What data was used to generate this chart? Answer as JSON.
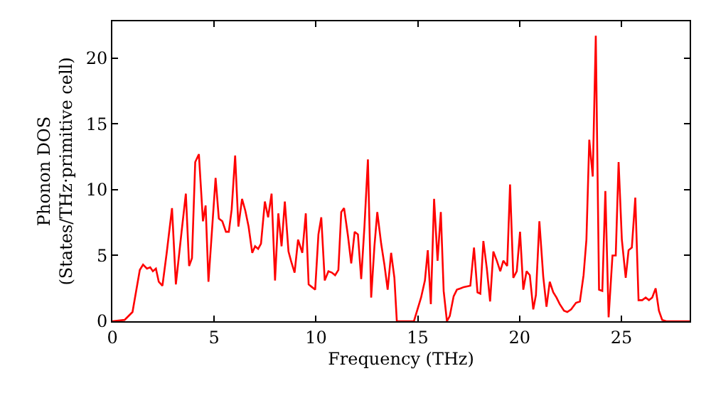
{
  "chart_data": {
    "type": "line",
    "xlabel": "Frequency (THz)",
    "ylabel": "Phonon DOS\n(States/THz·primitive cell)",
    "xlim": [
      0,
      28.35
    ],
    "ylim": [
      0,
      22.8
    ],
    "xticks": [
      0,
      5,
      10,
      15,
      20,
      25
    ],
    "yticks": [
      0,
      5,
      10,
      15,
      20
    ],
    "marker": "none",
    "line_style": "solid",
    "series": [
      {
        "color": "#ff0000",
        "x": [
          0,
          0.6,
          0.99,
          1.35,
          1.51,
          1.7,
          1.86,
          1.99,
          2.14,
          2.28,
          2.46,
          2.67,
          2.93,
          3.12,
          3.4,
          3.61,
          3.77,
          3.91,
          4.07,
          4.25,
          4.45,
          4.58,
          4.72,
          5.07,
          5.23,
          5.4,
          5.58,
          5.72,
          5.86,
          6.03,
          6.19,
          6.37,
          6.53,
          6.69,
          6.87,
          7.01,
          7.16,
          7.3,
          7.49,
          7.65,
          7.82,
          7.99,
          8.15,
          8.31,
          8.47,
          8.65,
          8.79,
          8.95,
          9.12,
          9.33,
          9.5,
          9.64,
          9.8,
          9.96,
          10.12,
          10.26,
          10.43,
          10.61,
          10.78,
          10.94,
          11.1,
          11.24,
          11.38,
          11.57,
          11.73,
          11.9,
          12.06,
          12.22,
          12.38,
          12.55,
          12.71,
          12.87,
          13.01,
          13.2,
          13.36,
          13.52,
          13.69,
          13.85,
          13.97,
          14.81,
          15.16,
          15.35,
          15.49,
          15.64,
          15.8,
          15.97,
          16.13,
          16.27,
          16.43,
          16.57,
          16.76,
          16.92,
          17.1,
          17.26,
          17.58,
          17.76,
          17.93,
          18.07,
          18.22,
          18.39,
          18.55,
          18.71,
          18.88,
          19.05,
          19.2,
          19.39,
          19.53,
          19.69,
          19.86,
          20.02,
          20.18,
          20.34,
          20.5,
          20.67,
          20.8,
          20.97,
          21.16,
          21.32,
          21.48,
          21.65,
          21.81,
          21.97,
          22.18,
          22.34,
          22.53,
          22.77,
          22.96,
          23.14,
          23.28,
          23.42,
          23.59,
          23.74,
          23.9,
          24.06,
          24.21,
          24.37,
          24.56,
          24.72,
          24.86,
          25.02,
          25.21,
          25.35,
          25.51,
          25.68,
          25.84,
          26.02,
          26.19,
          26.35,
          26.51,
          26.68,
          26.84,
          27.0,
          27.2,
          28.35
        ],
        "values": [
          0,
          0.1,
          0.7,
          3.9,
          4.3,
          4.0,
          4.1,
          3.8,
          4.0,
          3.0,
          2.7,
          5.2,
          8.6,
          2.8,
          6.8,
          9.7,
          4.2,
          4.8,
          12.1,
          12.7,
          7.6,
          8.8,
          3.0,
          10.9,
          7.8,
          7.6,
          6.8,
          6.8,
          8.5,
          12.6,
          7.2,
          9.3,
          8.4,
          7.2,
          5.2,
          5.7,
          5.5,
          5.9,
          9.1,
          7.9,
          9.7,
          3.1,
          8.2,
          5.7,
          9.1,
          5.3,
          4.5,
          3.7,
          6.2,
          5.2,
          8.2,
          2.8,
          2.6,
          2.4,
          6.6,
          7.9,
          3.1,
          3.8,
          3.7,
          3.5,
          3.9,
          8.3,
          8.6,
          6.5,
          4.4,
          6.8,
          6.6,
          3.2,
          7.2,
          12.3,
          1.8,
          5.7,
          8.3,
          5.9,
          4.3,
          2.4,
          5.2,
          3.3,
          0,
          0,
          1.8,
          3.1,
          5.4,
          1.3,
          9.3,
          4.6,
          8.3,
          2.3,
          0,
          0.4,
          1.9,
          2.4,
          2.5,
          2.6,
          2.7,
          5.6,
          2.2,
          2.1,
          6.1,
          4.0,
          1.5,
          5.3,
          4.6,
          3.8,
          4.6,
          4.2,
          10.4,
          3.3,
          3.8,
          6.8,
          2.4,
          3.8,
          3.5,
          0.9,
          2.0,
          7.6,
          3.4,
          1.1,
          3.0,
          2.2,
          1.8,
          1.3,
          0.8,
          0.7,
          0.9,
          1.4,
          1.5,
          3.5,
          6.2,
          13.8,
          11.0,
          21.7,
          2.4,
          2.3,
          9.9,
          0.3,
          5.0,
          5.0,
          12.1,
          6.2,
          3.3,
          5.4,
          5.6,
          9.4,
          1.6,
          1.6,
          1.8,
          1.6,
          1.8,
          2.5,
          0.8,
          0.1,
          0,
          0
        ]
      }
    ]
  }
}
